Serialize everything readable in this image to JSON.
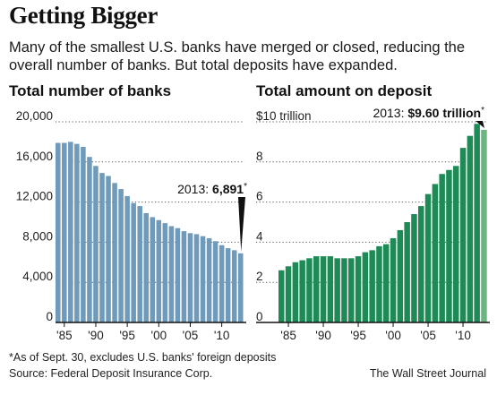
{
  "title": "Getting Bigger",
  "subtitle": "Many of the smallest U.S. banks have merged or closed, reducing the overall number of banks. But total deposits have expanded.",
  "footnote": "*As of Sept. 30, excludes U.S. banks' foreign deposits",
  "source": "Source: Federal Deposit Insurance Corp.",
  "credit": "The Wall Street Journal",
  "colors": {
    "banks": "#6f9ab9",
    "deposits": "#1e8b57",
    "deposits_last": "#6bb57f"
  },
  "chart_data": [
    {
      "type": "bar",
      "title": "Total number of banks",
      "xlabel": "",
      "ylabel": "",
      "x": [
        1984,
        1985,
        1986,
        1987,
        1988,
        1989,
        1990,
        1991,
        1992,
        1993,
        1994,
        1995,
        1996,
        1997,
        1998,
        1999,
        2000,
        2001,
        2002,
        2003,
        2004,
        2005,
        2006,
        2007,
        2008,
        2009,
        2010,
        2011,
        2012,
        2013
      ],
      "values": [
        17900,
        17900,
        18000,
        17800,
        17500,
        16500,
        15600,
        14900,
        14600,
        13900,
        13300,
        12600,
        11900,
        11600,
        10900,
        10500,
        10200,
        9900,
        9600,
        9400,
        9100,
        8900,
        8800,
        8600,
        8400,
        8100,
        7700,
        7400,
        7200,
        6891
      ],
      "ylim": [
        0,
        20000
      ],
      "yticks": [
        0,
        4000,
        8000,
        12000,
        16000,
        20000
      ],
      "ytick_labels": [
        "0",
        "4,000",
        "8,000",
        "12,000",
        "16,000",
        "20,000"
      ],
      "xticks": [
        1985,
        1990,
        1995,
        2000,
        2005,
        2010
      ],
      "xtick_labels": [
        "'85",
        "'90",
        "'95",
        "'00",
        "'05",
        "'10"
      ],
      "grid": "horizontal dotted",
      "annotation": {
        "prefix": "2013: ",
        "value": "6,891",
        "mark": "*"
      }
    },
    {
      "type": "bar",
      "title": "Total amount on deposit",
      "xlabel": "",
      "ylabel": "",
      "x": [
        1984,
        1985,
        1986,
        1987,
        1988,
        1989,
        1990,
        1991,
        1992,
        1993,
        1994,
        1995,
        1996,
        1997,
        1998,
        1999,
        2000,
        2001,
        2002,
        2003,
        2004,
        2005,
        2006,
        2007,
        2008,
        2009,
        2010,
        2011,
        2012,
        2013
      ],
      "values": [
        2.6,
        2.8,
        3.0,
        3.1,
        3.2,
        3.3,
        3.3,
        3.3,
        3.2,
        3.2,
        3.2,
        3.3,
        3.5,
        3.6,
        3.8,
        3.9,
        4.2,
        4.6,
        5.0,
        5.4,
        5.8,
        6.4,
        6.9,
        7.4,
        7.6,
        7.8,
        8.7,
        9.3,
        9.9,
        9.6
      ],
      "ylim": [
        0,
        10
      ],
      "yticks": [
        0,
        2,
        4,
        6,
        8,
        10
      ],
      "ytick_labels": [
        "0",
        "2",
        "4",
        "6",
        "8",
        "$10 trillion"
      ],
      "xticks": [
        1985,
        1990,
        1995,
        2000,
        2005,
        2010
      ],
      "xtick_labels": [
        "'85",
        "'90",
        "'95",
        "'00",
        "'05",
        "'10"
      ],
      "grid": "horizontal dotted",
      "annotation": {
        "prefix": "2013: ",
        "value": "$9.60 trillion",
        "mark": "*"
      }
    }
  ]
}
